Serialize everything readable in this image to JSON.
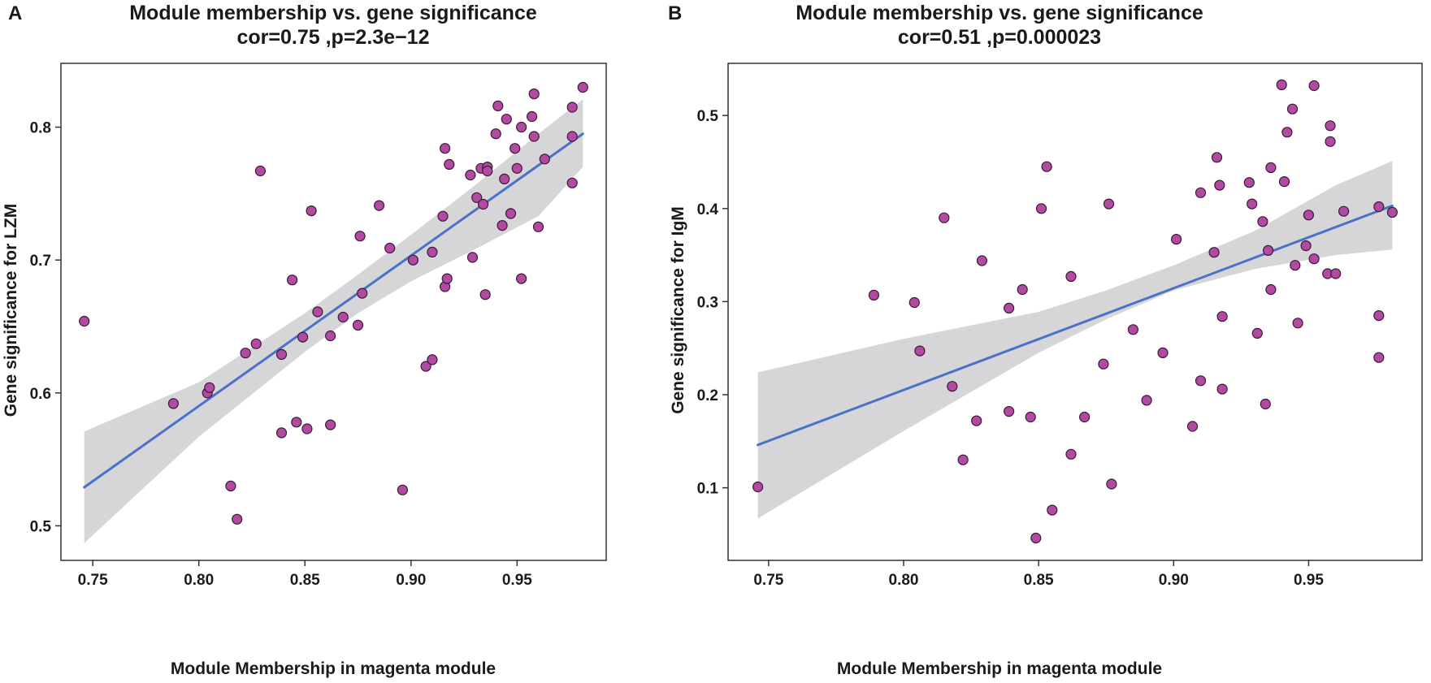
{
  "colors": {
    "point_fill": "#b14aa0",
    "point_stroke": "#3a1a38",
    "line": "#4a72c6",
    "ci_band": "#d6d6d8",
    "frame": "#333333"
  },
  "chart_data": [
    {
      "type": "scatter",
      "panel_label": "A",
      "title": "Module membership vs. gene significance",
      "subtitle": "cor=0.75 ,p=2.3e−12",
      "xlabel": "Module Membership in magenta module",
      "ylabel": "Gene significance for  LZM",
      "xlim": [
        0.735,
        0.992
      ],
      "ylim": [
        0.474,
        0.848
      ],
      "xticks": [
        0.75,
        0.8,
        0.85,
        0.9,
        0.95
      ],
      "xtick_labels": [
        "0.75",
        "0.80",
        "0.85",
        "0.90",
        "0.95"
      ],
      "yticks": [
        0.5,
        0.6,
        0.7,
        0.8
      ],
      "ytick_labels": [
        "0.5",
        "0.6",
        "0.7",
        "0.8"
      ],
      "fit_line": {
        "x": [
          0.746,
          0.981
        ],
        "y": [
          0.529,
          0.795
        ]
      },
      "confidence_band": {
        "x": [
          0.746,
          0.8,
          0.85,
          0.875,
          0.9,
          0.93,
          0.96,
          0.981
        ],
        "lower": [
          0.487,
          0.567,
          0.631,
          0.66,
          0.684,
          0.708,
          0.733,
          0.77
        ],
        "upper": [
          0.571,
          0.608,
          0.66,
          0.689,
          0.719,
          0.756,
          0.795,
          0.821
        ]
      },
      "points": [
        [
          0.746,
          0.654
        ],
        [
          0.788,
          0.592
        ],
        [
          0.804,
          0.6
        ],
        [
          0.805,
          0.604
        ],
        [
          0.815,
          0.53
        ],
        [
          0.818,
          0.505
        ],
        [
          0.822,
          0.63
        ],
        [
          0.827,
          0.637
        ],
        [
          0.829,
          0.767
        ],
        [
          0.839,
          0.57
        ],
        [
          0.839,
          0.629
        ],
        [
          0.844,
          0.685
        ],
        [
          0.846,
          0.578
        ],
        [
          0.849,
          0.642
        ],
        [
          0.851,
          0.573
        ],
        [
          0.853,
          0.737
        ],
        [
          0.856,
          0.661
        ],
        [
          0.862,
          0.643
        ],
        [
          0.862,
          0.576
        ],
        [
          0.868,
          0.657
        ],
        [
          0.875,
          0.651
        ],
        [
          0.876,
          0.718
        ],
        [
          0.877,
          0.675
        ],
        [
          0.885,
          0.741
        ],
        [
          0.89,
          0.709
        ],
        [
          0.896,
          0.527
        ],
        [
          0.901,
          0.7
        ],
        [
          0.907,
          0.62
        ],
        [
          0.91,
          0.706
        ],
        [
          0.91,
          0.625
        ],
        [
          0.915,
          0.733
        ],
        [
          0.916,
          0.784
        ],
        [
          0.916,
          0.68
        ],
        [
          0.917,
          0.686
        ],
        [
          0.918,
          0.772
        ],
        [
          0.928,
          0.764
        ],
        [
          0.929,
          0.702
        ],
        [
          0.931,
          0.747
        ],
        [
          0.933,
          0.769
        ],
        [
          0.934,
          0.742
        ],
        [
          0.935,
          0.674
        ],
        [
          0.936,
          0.77
        ],
        [
          0.936,
          0.767
        ],
        [
          0.94,
          0.795
        ],
        [
          0.941,
          0.816
        ],
        [
          0.943,
          0.726
        ],
        [
          0.944,
          0.761
        ],
        [
          0.945,
          0.806
        ],
        [
          0.947,
          0.735
        ],
        [
          0.949,
          0.784
        ],
        [
          0.95,
          0.769
        ],
        [
          0.952,
          0.8
        ],
        [
          0.952,
          0.686
        ],
        [
          0.957,
          0.808
        ],
        [
          0.958,
          0.825
        ],
        [
          0.958,
          0.793
        ],
        [
          0.96,
          0.725
        ],
        [
          0.963,
          0.776
        ],
        [
          0.976,
          0.815
        ],
        [
          0.976,
          0.793
        ],
        [
          0.976,
          0.758
        ],
        [
          0.981,
          0.83
        ]
      ]
    },
    {
      "type": "scatter",
      "panel_label": "B",
      "title": "Module membership vs. gene significance",
      "subtitle": "cor=0.51 ,p=0.000023",
      "xlabel": "Module Membership in magenta module",
      "ylabel": "Gene significance for  IgM",
      "xlim": [
        0.735,
        0.992
      ],
      "ylim": [
        0.022,
        0.556
      ],
      "xticks": [
        0.75,
        0.8,
        0.85,
        0.9,
        0.95
      ],
      "xtick_labels": [
        "0.75",
        "0.80",
        "0.85",
        "0.90",
        "0.95"
      ],
      "yticks": [
        0.1,
        0.2,
        0.3,
        0.4,
        0.5
      ],
      "ytick_labels": [
        "0.1",
        "0.2",
        "0.3",
        "0.4",
        "0.5"
      ],
      "fit_line": {
        "x": [
          0.746,
          0.981
        ],
        "y": [
          0.146,
          0.403
        ]
      },
      "confidence_band": {
        "x": [
          0.746,
          0.8,
          0.85,
          0.875,
          0.9,
          0.93,
          0.96,
          0.981
        ],
        "lower": [
          0.067,
          0.161,
          0.245,
          0.281,
          0.312,
          0.335,
          0.35,
          0.356
        ],
        "upper": [
          0.224,
          0.26,
          0.289,
          0.312,
          0.339,
          0.376,
          0.425,
          0.451
        ]
      },
      "points": [
        [
          0.746,
          0.101
        ],
        [
          0.789,
          0.307
        ],
        [
          0.804,
          0.299
        ],
        [
          0.806,
          0.247
        ],
        [
          0.815,
          0.39
        ],
        [
          0.818,
          0.209
        ],
        [
          0.822,
          0.13
        ],
        [
          0.827,
          0.172
        ],
        [
          0.829,
          0.344
        ],
        [
          0.839,
          0.182
        ],
        [
          0.839,
          0.293
        ],
        [
          0.844,
          0.313
        ],
        [
          0.847,
          0.176
        ],
        [
          0.849,
          0.046
        ],
        [
          0.851,
          0.4
        ],
        [
          0.853,
          0.445
        ],
        [
          0.855,
          0.076
        ],
        [
          0.862,
          0.327
        ],
        [
          0.862,
          0.136
        ],
        [
          0.867,
          0.176
        ],
        [
          0.874,
          0.233
        ],
        [
          0.876,
          0.405
        ],
        [
          0.877,
          0.104
        ],
        [
          0.885,
          0.27
        ],
        [
          0.89,
          0.194
        ],
        [
          0.896,
          0.245
        ],
        [
          0.901,
          0.367
        ],
        [
          0.907,
          0.166
        ],
        [
          0.91,
          0.417
        ],
        [
          0.91,
          0.215
        ],
        [
          0.915,
          0.353
        ],
        [
          0.916,
          0.455
        ],
        [
          0.917,
          0.425
        ],
        [
          0.918,
          0.206
        ],
        [
          0.918,
          0.284
        ],
        [
          0.928,
          0.428
        ],
        [
          0.929,
          0.405
        ],
        [
          0.931,
          0.266
        ],
        [
          0.933,
          0.386
        ],
        [
          0.934,
          0.19
        ],
        [
          0.935,
          0.355
        ],
        [
          0.936,
          0.313
        ],
        [
          0.936,
          0.444
        ],
        [
          0.94,
          0.533
        ],
        [
          0.941,
          0.429
        ],
        [
          0.942,
          0.482
        ],
        [
          0.944,
          0.507
        ],
        [
          0.945,
          0.339
        ],
        [
          0.946,
          0.277
        ],
        [
          0.949,
          0.36
        ],
        [
          0.95,
          0.393
        ],
        [
          0.952,
          0.346
        ],
        [
          0.952,
          0.532
        ],
        [
          0.957,
          0.33
        ],
        [
          0.958,
          0.472
        ],
        [
          0.958,
          0.489
        ],
        [
          0.96,
          0.33
        ],
        [
          0.963,
          0.397
        ],
        [
          0.976,
          0.402
        ],
        [
          0.976,
          0.285
        ],
        [
          0.976,
          0.24
        ],
        [
          0.981,
          0.396
        ]
      ]
    }
  ]
}
